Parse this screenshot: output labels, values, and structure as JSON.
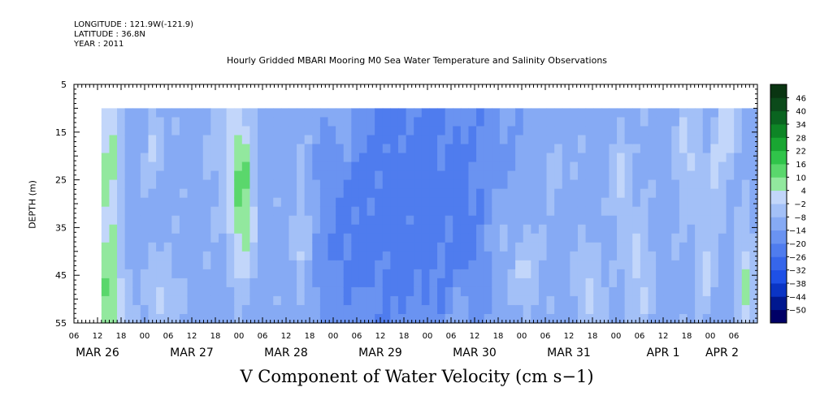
{
  "header": {
    "longitude": "LONGITUDE : 121.9W(-121.9)",
    "latitude": "LATITUDE : 36.8N",
    "year": "YEAR : 2011"
  },
  "chart_data": {
    "type": "heatmap",
    "title": "Hourly Gridded MBARI Mooring M0 Sea Water Temperature and Salinity Observations",
    "xlabel": "V Component of Water Velocity (cm s−1)",
    "ylabel": "DEPTH (m)",
    "x_axis": {
      "units": "hours since 2011-03-26 00:00",
      "range": [
        -18,
        156
      ],
      "hour_ticks": [
        {
          "h": -18,
          "label": "06"
        },
        {
          "h": -12,
          "label": "12"
        },
        {
          "h": -6,
          "label": "18"
        },
        {
          "h": 0,
          "label": "00"
        },
        {
          "h": 6,
          "label": "06"
        },
        {
          "h": 12,
          "label": "12"
        },
        {
          "h": 18,
          "label": "18"
        },
        {
          "h": 24,
          "label": "00"
        },
        {
          "h": 30,
          "label": "06"
        },
        {
          "h": 36,
          "label": "12"
        },
        {
          "h": 42,
          "label": "18"
        },
        {
          "h": 48,
          "label": "00"
        },
        {
          "h": 54,
          "label": "06"
        },
        {
          "h": 60,
          "label": "12"
        },
        {
          "h": 66,
          "label": "18"
        },
        {
          "h": 72,
          "label": "00"
        },
        {
          "h": 78,
          "label": "06"
        },
        {
          "h": 84,
          "label": "12"
        },
        {
          "h": 90,
          "label": "18"
        },
        {
          "h": 96,
          "label": "00"
        },
        {
          "h": 102,
          "label": "06"
        },
        {
          "h": 108,
          "label": "12"
        },
        {
          "h": 114,
          "label": "18"
        },
        {
          "h": 120,
          "label": "00"
        },
        {
          "h": 126,
          "label": "06"
        },
        {
          "h": 132,
          "label": "12"
        },
        {
          "h": 138,
          "label": "18"
        },
        {
          "h": 144,
          "label": "00"
        },
        {
          "h": 150,
          "label": "06"
        }
      ],
      "date_labels": [
        {
          "h": -12,
          "label": "MAR 26"
        },
        {
          "h": 12,
          "label": "MAR 27"
        },
        {
          "h": 36,
          "label": "MAR 28"
        },
        {
          "h": 60,
          "label": "MAR 29"
        },
        {
          "h": 84,
          "label": "MAR 30"
        },
        {
          "h": 108,
          "label": "MAR 31"
        },
        {
          "h": 132,
          "label": "APR  1"
        },
        {
          "h": 147,
          "label": "APR  2"
        }
      ]
    },
    "y_axis": {
      "range": [
        5,
        55
      ],
      "reversed": true,
      "ticks": [
        5,
        15,
        25,
        35,
        45,
        55
      ]
    },
    "data_extent": {
      "x": [
        -11,
        156
      ],
      "depth": [
        10,
        55
      ]
    },
    "colorbar": {
      "levels": [
        -50,
        -44,
        -38,
        -32,
        -26,
        -20,
        -14,
        -8,
        -2,
        4,
        10,
        16,
        22,
        28,
        34,
        40,
        46
      ],
      "labels": [
        "46",
        "40",
        "34",
        "28",
        "22",
        "16",
        "10",
        "4",
        "−2",
        "−8",
        "−14",
        "−20",
        "−26",
        "−32",
        "−38",
        "−44",
        "−50"
      ],
      "colors_low_to_high": [
        "#000066",
        "#00188f",
        "#0a34c4",
        "#1e50e6",
        "#3666ea",
        "#4f7cee",
        "#6a93f1",
        "#86aaf4",
        "#a3c0f7",
        "#c2d6fa",
        "#92e89e",
        "#5ad76c",
        "#30c44a",
        "#19a632",
        "#0e8526",
        "#0a6420",
        "#0b4a1a",
        "#0a3512"
      ]
    },
    "field": {
      "time_cells": 84,
      "depth_cells": 24,
      "background": -10,
      "components": [
        {
          "t": 60,
          "z": 30,
          "amp": -11,
          "sx": 10,
          "sz": 30
        },
        {
          "t": 81,
          "z": 30,
          "amp": -10,
          "sx": 10,
          "sz": 30
        },
        {
          "t": 49,
          "z": 40,
          "amp": -5,
          "sx": 4,
          "sz": 12
        },
        {
          "t": -9,
          "z": 30,
          "amp": 17,
          "sx": 1.8,
          "sz": 30
        },
        {
          "t": 25,
          "z": 30,
          "amp": 18,
          "sx": 2.2,
          "sz": 12
        },
        {
          "t": 22,
          "z": 18,
          "amp": 10,
          "sx": 3,
          "sz": 10
        },
        {
          "t": 2,
          "z": 18,
          "amp": 8,
          "sx": 1.5,
          "sz": 6
        },
        {
          "t": -8,
          "z": 50,
          "amp": 10,
          "sx": 2.5,
          "sz": 6
        },
        {
          "t": 5,
          "z": 50,
          "amp": 10,
          "sx": 2.5,
          "sz": 6
        },
        {
          "t": 40,
          "z": 35,
          "amp": 10,
          "sx": 1.5,
          "sz": 12
        },
        {
          "t": 51,
          "z": 14,
          "amp": 7,
          "sx": 1.5,
          "sz": 5
        },
        {
          "t": 97,
          "z": 44,
          "amp": 11,
          "sx": 3,
          "sz": 7
        },
        {
          "t": 90,
          "z": 40,
          "amp": 8,
          "sx": 2,
          "sz": 10
        },
        {
          "t": 121,
          "z": 26,
          "amp": 10,
          "sx": 1.5,
          "sz": 8
        },
        {
          "t": 113,
          "z": 48,
          "amp": 10,
          "sx": 2,
          "sz": 6
        },
        {
          "t": 126,
          "z": 45,
          "amp": 10,
          "sx": 2,
          "sz": 10
        },
        {
          "t": 138,
          "z": 20,
          "amp": 10,
          "sx": 2,
          "sz": 8
        },
        {
          "t": 148,
          "z": 14,
          "amp": 12,
          "sx": 2,
          "sz": 6
        },
        {
          "t": 153,
          "z": 47,
          "amp": 14,
          "sx": 1.5,
          "sz": 9
        },
        {
          "t": 143,
          "z": 42,
          "amp": 9,
          "sx": 1.5,
          "sz": 8
        },
        {
          "t": 80,
          "z": 52,
          "amp": 8,
          "sx": 2,
          "sz": 4
        },
        {
          "t": 145,
          "z": 25,
          "amp": 8,
          "sx": 1.5,
          "sz": 6
        },
        {
          "t": 104,
          "z": 22,
          "amp": 6,
          "sx": 1.5,
          "sz": 5
        }
      ]
    }
  }
}
